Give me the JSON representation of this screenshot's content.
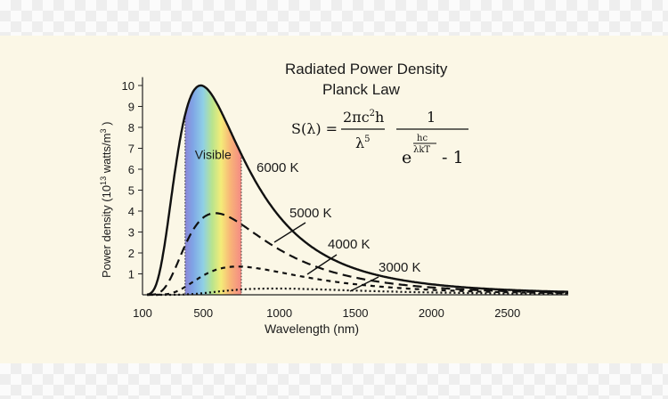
{
  "chart_data": {
    "type": "line",
    "title": "Radiated Power Density",
    "subtitle": "Planck Law",
    "xlabel": "Wavelength (nm)",
    "ylabel": {
      "prefix": "Power density (10",
      "exp1": "13",
      "mid": " watts/m",
      "exp2": "3",
      "suffix": " )"
    },
    "xlim": [
      100,
      2900
    ],
    "ylim": [
      0,
      10.4
    ],
    "x_ticks": [
      100,
      500,
      1000,
      1500,
      2000,
      2500
    ],
    "y_ticks": [
      1,
      2,
      3,
      4,
      5,
      6,
      7,
      8,
      9,
      10
    ],
    "visible_band": {
      "label": "Visible",
      "x_range": [
        380,
        750
      ]
    },
    "formula": {
      "lhs": "S(λ) =",
      "num1": "2πc",
      "num1_exp": "2",
      "num1_tail": "h",
      "den1": "λ",
      "den1_exp": "5",
      "num2": "1",
      "den2_base": "e",
      "den2_exp_num": "hc",
      "den2_exp_den": "λkT",
      "den2_tail": "- 1"
    },
    "series": [
      {
        "name": "6000 K",
        "temperature_K": 6000,
        "style": "solid",
        "peak": 10.0,
        "peak_x": 480
      },
      {
        "name": "5000 K",
        "temperature_K": 5000,
        "style": "dashed",
        "peak": 3.9,
        "peak_x": 580
      },
      {
        "name": "4000 K",
        "temperature_K": 4000,
        "style": "short-dashed",
        "peak": 1.35,
        "peak_x": 725
      },
      {
        "name": "3000 K",
        "temperature_K": 3000,
        "style": "dotted",
        "peak": 0.3,
        "peak_x": 965
      }
    ]
  }
}
